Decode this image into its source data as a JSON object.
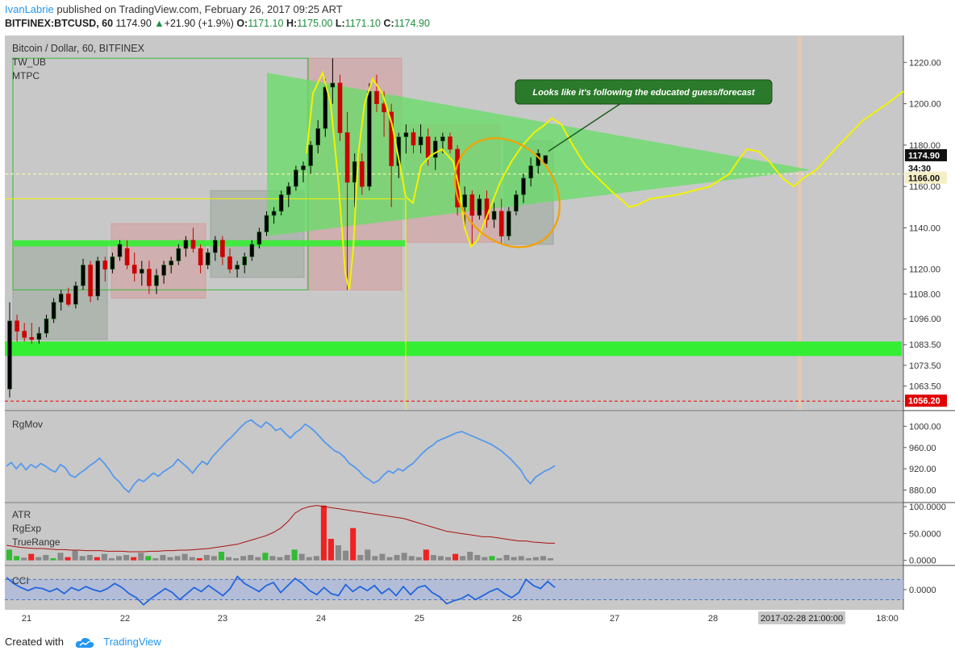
{
  "header": {
    "author": "IvanLabrie",
    "published": "published on TradingView.com, February 26, 2017 09:25 ART",
    "symbol": "BITFINEX:BTCUSD, 60",
    "last": "1174.90",
    "arrow": "▲",
    "change": "+21.90 (+1.9%)",
    "o_label": "O:",
    "o_val": "1171.10",
    "h_label": "H:",
    "h_val": "1175.00",
    "l_label": "L:",
    "l_val": "1171.10",
    "c_label": "C:",
    "c_val": "1174.90"
  },
  "footer": {
    "created_with": "Created with",
    "brand": "TradingView"
  },
  "colors": {
    "bg": "#c8c8c8",
    "up": "#000000",
    "down": "#cc0000",
    "green_zone": "#33ee33",
    "triangle": "#66dd66",
    "yellow": "#f2f200",
    "orange": "#f5a000",
    "cci": "#2266dd",
    "atr": "#aa1111"
  },
  "chart_data": {
    "type": "candlestick",
    "main": {
      "title": "Bitcoin / Dollar, 60, BITFINEX",
      "indicators": [
        "TW_UB",
        "MTPC"
      ],
      "y_ticks": [
        "1220.00",
        "1200.00",
        "1180.00",
        "1160.00",
        "1140.00",
        "1120.00",
        "1108.00",
        "1096.00",
        "1083.50",
        "1073.50",
        "1063.50"
      ],
      "ylim": [
        1052,
        1233
      ],
      "last_price": "1174.90",
      "countdown": "34:30",
      "horizontal_line_price": "1166.00",
      "red_line_price": "1056.20",
      "annotation": "Looks like it's following the educated guess/forecast",
      "candles": [
        [
          1062,
          1104,
          1058,
          1095
        ],
        [
          1095,
          1098,
          1085,
          1090
        ],
        [
          1090,
          1094,
          1085,
          1087
        ],
        [
          1087,
          1094,
          1084,
          1086
        ],
        [
          1086,
          1092,
          1084,
          1089
        ],
        [
          1089,
          1098,
          1087,
          1096
        ],
        [
          1096,
          1106,
          1094,
          1104
        ],
        [
          1104,
          1110,
          1100,
          1108
        ],
        [
          1108,
          1111,
          1102,
          1103
        ],
        [
          1103,
          1114,
          1101,
          1112
        ],
        [
          1112,
          1125,
          1110,
          1122
        ],
        [
          1122,
          1124,
          1104,
          1107
        ],
        [
          1107,
          1126,
          1105,
          1124
        ],
        [
          1124,
          1126,
          1114,
          1120
        ],
        [
          1120,
          1128,
          1118,
          1126
        ],
        [
          1126,
          1134,
          1124,
          1132
        ],
        [
          1130,
          1134,
          1120,
          1122
        ],
        [
          1122,
          1128,
          1114,
          1118
        ],
        [
          1118,
          1124,
          1112,
          1120
        ],
        [
          1120,
          1124,
          1108,
          1112
        ],
        [
          1112,
          1120,
          1108,
          1117
        ],
        [
          1117,
          1124,
          1113,
          1122
        ],
        [
          1122,
          1126,
          1118,
          1124
        ],
        [
          1124,
          1132,
          1122,
          1130
        ],
        [
          1130,
          1136,
          1126,
          1134
        ],
        [
          1134,
          1140,
          1128,
          1130
        ],
        [
          1130,
          1132,
          1118,
          1122
        ],
        [
          1122,
          1130,
          1120,
          1128
        ],
        [
          1128,
          1136,
          1124,
          1134
        ],
        [
          1134,
          1136,
          1122,
          1126
        ],
        [
          1126,
          1130,
          1118,
          1120
        ],
        [
          1120,
          1124,
          1116,
          1122
        ],
        [
          1122,
          1128,
          1118,
          1126
        ],
        [
          1126,
          1134,
          1124,
          1132
        ],
        [
          1132,
          1140,
          1130,
          1138
        ],
        [
          1138,
          1148,
          1136,
          1146
        ],
        [
          1146,
          1150,
          1142,
          1148
        ],
        [
          1148,
          1158,
          1146,
          1156
        ],
        [
          1156,
          1162,
          1150,
          1160
        ],
        [
          1160,
          1170,
          1158,
          1168
        ],
        [
          1168,
          1172,
          1162,
          1170
        ],
        [
          1170,
          1182,
          1166,
          1180
        ],
        [
          1180,
          1192,
          1176,
          1188
        ],
        [
          1188,
          1212,
          1184,
          1208
        ],
        [
          1208,
          1222,
          1200,
          1210
        ],
        [
          1210,
          1214,
          1182,
          1186
        ],
        [
          1186,
          1196,
          1110,
          1162
        ],
        [
          1162,
          1176,
          1150,
          1172
        ],
        [
          1172,
          1176,
          1156,
          1160
        ],
        [
          1160,
          1210,
          1158,
          1206
        ],
        [
          1206,
          1214,
          1196,
          1200
        ],
        [
          1200,
          1206,
          1184,
          1196
        ],
        [
          1196,
          1200,
          1150,
          1170
        ],
        [
          1170,
          1186,
          1164,
          1184
        ],
        [
          1184,
          1190,
          1176,
          1186
        ],
        [
          1186,
          1188,
          1176,
          1180
        ],
        [
          1180,
          1190,
          1176,
          1184
        ],
        [
          1184,
          1188,
          1170,
          1174
        ],
        [
          1174,
          1184,
          1168,
          1182
        ],
        [
          1182,
          1186,
          1176,
          1184
        ],
        [
          1184,
          1186,
          1176,
          1178
        ],
        [
          1178,
          1180,
          1146,
          1150
        ],
        [
          1150,
          1160,
          1140,
          1156
        ],
        [
          1156,
          1158,
          1132,
          1146
        ],
        [
          1146,
          1156,
          1144,
          1154
        ],
        [
          1154,
          1158,
          1140,
          1144
        ],
        [
          1144,
          1152,
          1140,
          1148
        ],
        [
          1148,
          1154,
          1132,
          1136
        ],
        [
          1136,
          1150,
          1134,
          1148
        ],
        [
          1148,
          1158,
          1146,
          1156
        ],
        [
          1156,
          1166,
          1152,
          1164
        ],
        [
          1164,
          1174,
          1160,
          1170
        ],
        [
          1170,
          1178,
          1166,
          1176
        ],
        [
          1171,
          1175,
          1171,
          1175
        ]
      ]
    },
    "x_ticks": [
      "21",
      "22",
      "23",
      "24",
      "25",
      "26",
      "27",
      "28",
      "2017-02-28 21:00:00",
      "18:00"
    ],
    "rgmov": {
      "title": "RgMov",
      "y_ticks": [
        "1000.00",
        "960.00",
        "920.00",
        "880.00"
      ],
      "ylim": [
        858,
        1028
      ],
      "values": [
        925,
        932,
        920,
        930,
        918,
        928,
        922,
        930,
        925,
        918,
        914,
        928,
        922,
        908,
        904,
        912,
        918,
        926,
        932,
        940,
        930,
        918,
        904,
        896,
        884,
        876,
        890,
        900,
        896,
        904,
        912,
        906,
        914,
        920,
        926,
        938,
        930,
        922,
        912,
        924,
        934,
        928,
        942,
        952,
        962,
        972,
        980,
        990,
        1000,
        1008,
        1012,
        1004,
        998,
        1008,
        1002,
        992,
        996,
        986,
        978,
        988,
        994,
        1004,
        998,
        990,
        980,
        970,
        962,
        954,
        950,
        942,
        930,
        924,
        916,
        906,
        900,
        893,
        898,
        908,
        916,
        912,
        920,
        916,
        924,
        930,
        940,
        950,
        958,
        964,
        972,
        976,
        980,
        984,
        988,
        990,
        986,
        982,
        978,
        974,
        970,
        966,
        960,
        954,
        946,
        938,
        928,
        918,
        902,
        892,
        904,
        910,
        916,
        920,
        926
      ]
    },
    "atr_panel": {
      "titles": [
        "ATR",
        "RgExp",
        "TrueRange"
      ],
      "y_ticks": [
        "100.0000",
        "50.0000",
        "0.0000"
      ],
      "ylim": [
        -8,
        106
      ],
      "atr": [
        28,
        26,
        24,
        23,
        22,
        22,
        21,
        20,
        20,
        19,
        19,
        18,
        18,
        18,
        17,
        17,
        17,
        16,
        16,
        16,
        17,
        17,
        18,
        18,
        19,
        19,
        20,
        21,
        22,
        24,
        26,
        28,
        30,
        34,
        38,
        42,
        46,
        52,
        60,
        72,
        88,
        96,
        100,
        102,
        100,
        98,
        96,
        94,
        92,
        90,
        88,
        86,
        84,
        82,
        80,
        78,
        74,
        70,
        66,
        62,
        58,
        54,
        52,
        50,
        48,
        46,
        44,
        44,
        42,
        40,
        38,
        36,
        36,
        34,
        33,
        32,
        32
      ],
      "true_range": [
        20,
        8,
        5,
        12,
        6,
        10,
        4,
        14,
        6,
        18,
        8,
        10,
        6,
        12,
        4,
        8,
        10,
        6,
        14,
        8,
        4,
        10,
        6,
        8,
        12,
        6,
        4,
        10,
        8,
        16,
        6,
        4,
        8,
        10,
        6,
        14,
        8,
        6,
        10,
        20,
        12,
        6,
        8,
        102,
        40,
        28,
        18,
        60,
        10,
        20,
        8,
        12,
        6,
        10,
        14,
        8,
        6,
        20,
        10,
        8,
        6,
        12,
        8,
        16,
        10,
        6,
        8,
        4,
        10,
        6,
        8,
        4,
        6,
        8,
        4
      ],
      "bar_colors": [
        "green",
        "green",
        "gray",
        "red",
        "gray",
        "gray",
        "green",
        "gray",
        "red",
        "gray",
        "gray",
        "gray",
        "red",
        "gray",
        "gray",
        "gray",
        "gray",
        "red",
        "gray",
        "green",
        "gray",
        "gray",
        "gray",
        "gray",
        "gray",
        "gray",
        "red",
        "gray",
        "gray",
        "green",
        "gray",
        "gray",
        "gray",
        "gray",
        "gray",
        "green",
        "gray",
        "gray",
        "gray",
        "green",
        "gray",
        "gray",
        "gray",
        "red",
        "red",
        "gray",
        "gray",
        "red",
        "gray",
        "gray",
        "gray",
        "gray",
        "gray",
        "gray",
        "gray",
        "gray",
        "gray",
        "red",
        "gray",
        "gray",
        "gray",
        "red",
        "gray",
        "gray",
        "gray",
        "gray",
        "green",
        "gray",
        "gray",
        "gray",
        "gray",
        "gray",
        "gray",
        "gray",
        "gray"
      ]
    },
    "cci_panel": {
      "title": "CCI",
      "y_ticks": [
        "0.0000"
      ],
      "ylim": [
        -200,
        230
      ],
      "values": [
        120,
        60,
        20,
        -10,
        20,
        10,
        -20,
        10,
        -40,
        20,
        -10,
        30,
        0,
        -20,
        10,
        60,
        20,
        -40,
        -80,
        -150,
        -90,
        -40,
        10,
        -30,
        -100,
        -40,
        20,
        -20,
        40,
        -10,
        -60,
        10,
        130,
        60,
        20,
        -20,
        40,
        70,
        -30,
        40,
        110,
        60,
        -10,
        -50,
        20,
        -40,
        -60,
        50,
        -20,
        30,
        -10,
        40,
        -40,
        10,
        -60,
        30,
        -50,
        20,
        40,
        -30,
        -70,
        -140,
        -110,
        -90,
        -50,
        -100,
        -60,
        -20,
        10,
        -40,
        -80,
        -30,
        100,
        40,
        10,
        80,
        20
      ]
    }
  }
}
